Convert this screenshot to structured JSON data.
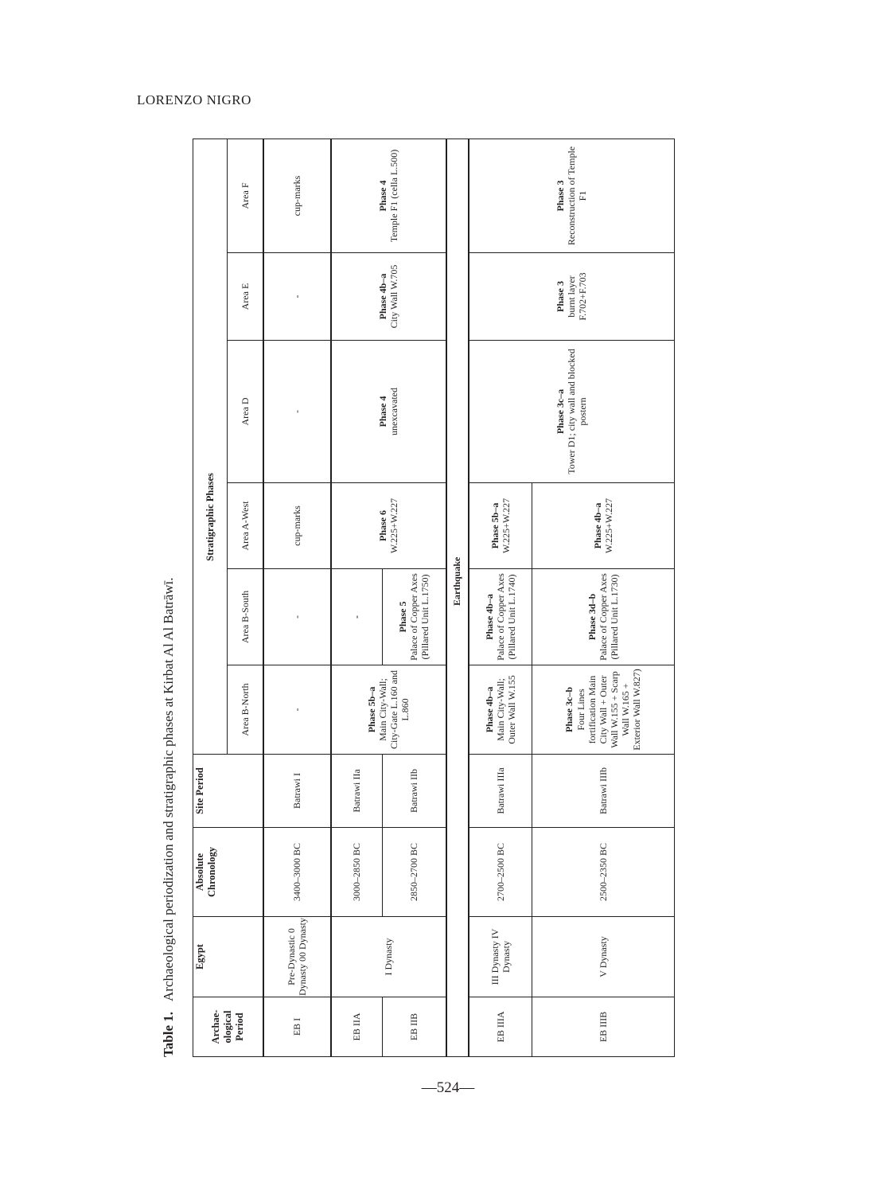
{
  "running_head": "LORENZO NIGRO",
  "page_number": "—524—",
  "caption": {
    "label": "Table 1.",
    "text": "Archaeological periodization and stratigraphic phases at Kirbat Al Al Batrāwī."
  },
  "table": {
    "headers": {
      "arch_period": "Archae-ological Period",
      "egypt": "Egypt",
      "absolute": "Absolute Chronology",
      "site_period": "Site Period",
      "strat": "Stratigraphic Phases",
      "areas": [
        "Area B-North",
        "Area B-South",
        "Area A-West",
        "Area D",
        "Area E",
        "Area F"
      ]
    },
    "eb1": {
      "period": "EB I",
      "egypt": "Pre-Dynastic 0 Dynasty 00 Dynasty",
      "abs": "3400–3000 BC",
      "site": "Batrawi I",
      "b_north": "-",
      "b_south": "-",
      "a_west": "cup-marks",
      "d": "-",
      "e": "-",
      "f": "cup-marks"
    },
    "eb2a": {
      "period": "EB IIA",
      "egypt": "I Dynasty",
      "abs": "3000–2850 BC",
      "site": "Batrawi IIa",
      "b_north_phase": "Phase 5b–a",
      "b_north_text": "Main City-Wall; City-Gate L.160 and L.860",
      "b_south": "-",
      "a_west_phase": "Phase 6",
      "a_west_text": "W.225+W.227",
      "d_phase": "Phase 4",
      "d_text": "unexcavated",
      "e_phase": "Phase 4b–a",
      "e_text": "City Wall W.705",
      "f_phase": "Phase 4",
      "f_text": "Temple F1 (cella L.500)"
    },
    "eb2b": {
      "period": "EB IIB",
      "abs": "2850–2700 BC",
      "site": "Batrawi IIb",
      "b_south_phase": "Phase 5",
      "b_south_text": "Palace of Copper Axes (Pillared Unit L.1750)"
    },
    "earthquake": "Earthquake",
    "eb3a": {
      "period": "EB IIIA",
      "egypt": "III Dynasty IV Dynasty",
      "abs": "2700–2500 BC",
      "site": "Batrawi IIIa",
      "b_north_phase": "Phase 4b–a",
      "b_north_text": "Main City-Wall; Outer Wall W.155",
      "b_south_phase": "Phase 4b–a",
      "b_south_text": "Palace of Copper Axes (Pillared Unit L.1740)",
      "a_west_phase": "Phase 5b–a",
      "a_west_text": "W.225+W.227",
      "d_phase": "Phase 3c–a",
      "d_text": "Tower D1; city wall and blocked postern",
      "e_phase": "Phase 3",
      "e_text": "burnt layer F.702+F.703",
      "f_phase": "Phase 3",
      "f_text": "Reconstruction of Temple F1"
    },
    "eb3b": {
      "period": "EB IIIB",
      "egypt": "V Dynasty",
      "abs": "2500–2350 BC",
      "site": "Batrawi IIIb",
      "b_north_phase": "Phase 3c–b",
      "b_north_text": "Four Lines fortification Main City Wall + Outer Wall W.155 + Scarp Wall W.165 + Exterior Wall W.827)",
      "b_south_phase": "Phase 3d–b",
      "b_south_text": "Palace of Copper Axes (Pillared Unit L.1730)",
      "a_west_phase": "Phase 4b–a",
      "a_west_text": "W.225+W.227"
    }
  }
}
